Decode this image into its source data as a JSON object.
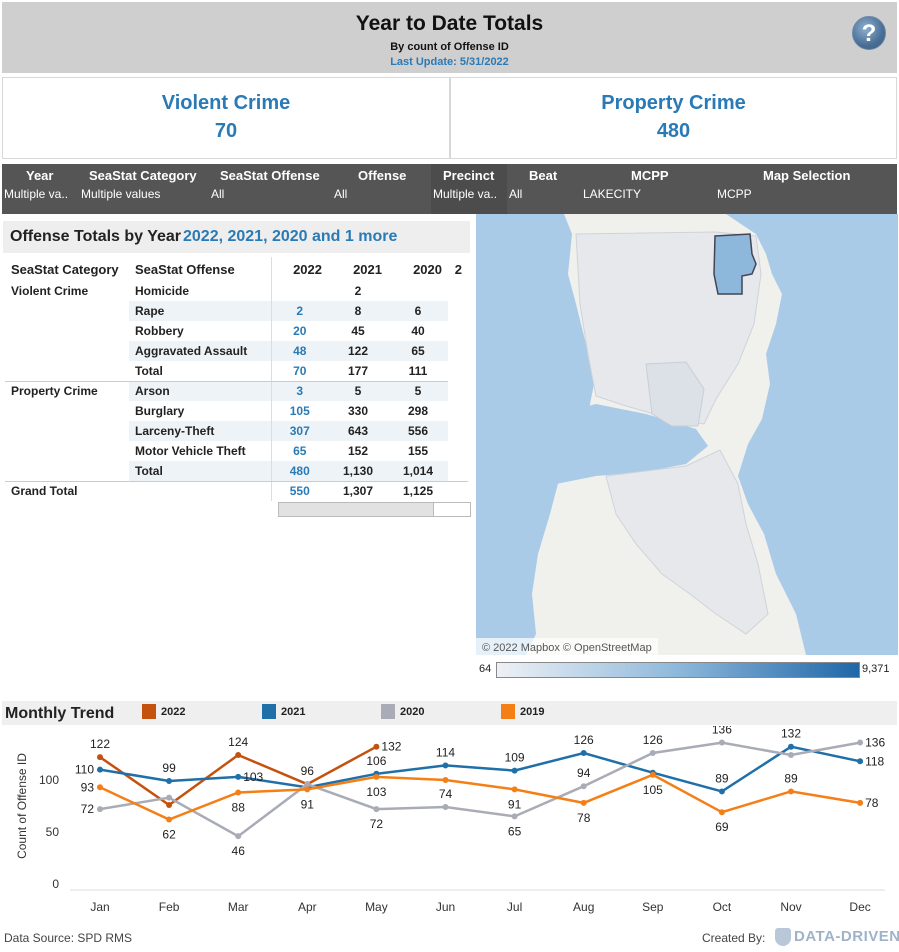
{
  "header": {
    "title": "Year to Date Totals",
    "subtitle": "By count of Offense ID",
    "last_update": "Last Update: 5/31/2022",
    "help_icon": "help-icon"
  },
  "kpis": {
    "violent": {
      "label": "Violent Crime",
      "value": "70"
    },
    "property": {
      "label": "Property Crime",
      "value": "480"
    }
  },
  "filters": [
    {
      "label": "Year",
      "value": "Multiple va.."
    },
    {
      "label": "SeaStat Category",
      "value": "Multiple values"
    },
    {
      "label": "SeaStat Offense",
      "value": "All"
    },
    {
      "label": "Offense",
      "value": "All"
    },
    {
      "label": "Precinct",
      "value": "Multiple va.."
    },
    {
      "label": "Beat",
      "value": "All"
    },
    {
      "label": "MCPP",
      "value": "LAKECITY"
    },
    {
      "label": "Map Selection",
      "value": "MCPP"
    }
  ],
  "offense_table": {
    "title": "Offense Totals by Year",
    "title_years": "2022, 2021, 2020 and 1 more",
    "col_headers": [
      "SeaStat Category",
      "SeaStat Offense",
      "2022",
      "2021",
      "2020",
      "2"
    ],
    "rows": [
      [
        "Violent Crime",
        "Homicide",
        "",
        "2",
        ""
      ],
      [
        "",
        "Rape",
        "2",
        "8",
        "6"
      ],
      [
        "",
        "Robbery",
        "20",
        "45",
        "40"
      ],
      [
        "",
        "Aggravated Assault",
        "48",
        "122",
        "65"
      ],
      [
        "",
        "Total",
        "70",
        "177",
        "111"
      ],
      [
        "Property Crime",
        "Arson",
        "3",
        "5",
        "5"
      ],
      [
        "",
        "Burglary",
        "105",
        "330",
        "298"
      ],
      [
        "",
        "Larceny-Theft",
        "307",
        "643",
        "556"
      ],
      [
        "",
        "Motor Vehicle Theft",
        "65",
        "152",
        "155"
      ],
      [
        "",
        "Total",
        "480",
        "1,130",
        "1,014"
      ],
      [
        "Grand Total",
        "",
        "550",
        "1,307",
        "1,125"
      ]
    ]
  },
  "map": {
    "attribution": "© 2022 Mapbox © OpenStreetMap",
    "legend_min": "64",
    "legend_max": "9,371",
    "water_color": "#a9cbe8",
    "selected_color": "#8db8db"
  },
  "monthly": {
    "title": "Monthly Trend",
    "legend": [
      {
        "name": "2022",
        "color": "#c4520e"
      },
      {
        "name": "2021",
        "color": "#1f6fa9"
      },
      {
        "name": "2020",
        "color": "#a9acb6"
      },
      {
        "name": "2019",
        "color": "#f57f17"
      }
    ]
  },
  "chart_data": {
    "type": "line",
    "ylabel": "Count of Offense ID",
    "ylim": [
      0,
      150
    ],
    "yticks": [
      "0",
      "50",
      "100"
    ],
    "categories": [
      "Jan",
      "Feb",
      "Mar",
      "Apr",
      "May",
      "Jun",
      "Jul",
      "Aug",
      "Sep",
      "Oct",
      "Nov",
      "Dec"
    ],
    "series": [
      {
        "name": "2022",
        "color": "#c4520e",
        "values": [
          122,
          76,
          124,
          96,
          132,
          null,
          null,
          null,
          null,
          null,
          null,
          null
        ]
      },
      {
        "name": "2021",
        "color": "#1f6fa9",
        "values": [
          110,
          99,
          103,
          93,
          106,
          114,
          109,
          126,
          107,
          89,
          132,
          118
        ]
      },
      {
        "name": "2020",
        "color": "#a9acb6",
        "values": [
          72,
          83,
          46,
          96,
          72,
          74,
          65,
          94,
          126,
          136,
          124,
          136
        ]
      },
      {
        "name": "2019",
        "color": "#f57f17",
        "values": [
          93,
          62,
          88,
          91,
          103,
          100,
          91,
          78,
          105,
          69,
          89,
          78
        ]
      }
    ],
    "data_labels": [
      {
        "series": "2022",
        "i": 0,
        "text": "122",
        "pos": "above"
      },
      {
        "series": "2022",
        "i": 2,
        "text": "124",
        "pos": "above"
      },
      {
        "series": "2022",
        "i": 4,
        "text": "132",
        "pos": "right"
      },
      {
        "series": "2021",
        "i": 0,
        "text": "110",
        "pos": "left"
      },
      {
        "series": "2021",
        "i": 1,
        "text": "99",
        "pos": "above"
      },
      {
        "series": "2021",
        "i": 2,
        "text": "103",
        "pos": "right"
      },
      {
        "series": "2021",
        "i": 4,
        "text": "106",
        "pos": "above"
      },
      {
        "series": "2021",
        "i": 5,
        "text": "114",
        "pos": "above"
      },
      {
        "series": "2021",
        "i": 6,
        "text": "109",
        "pos": "above"
      },
      {
        "series": "2021",
        "i": 7,
        "text": "126",
        "pos": "above"
      },
      {
        "series": "2021",
        "i": 9,
        "text": "89",
        "pos": "above"
      },
      {
        "series": "2021",
        "i": 10,
        "text": "132",
        "pos": "above"
      },
      {
        "series": "2021",
        "i": 11,
        "text": "118",
        "pos": "right"
      },
      {
        "series": "2020",
        "i": 0,
        "text": "72",
        "pos": "left"
      },
      {
        "series": "2020",
        "i": 2,
        "text": "46",
        "pos": "below"
      },
      {
        "series": "2020",
        "i": 3,
        "text": "96",
        "pos": "above"
      },
      {
        "series": "2020",
        "i": 4,
        "text": "72",
        "pos": "below"
      },
      {
        "series": "2020",
        "i": 5,
        "text": "74",
        "pos": "above"
      },
      {
        "series": "2020",
        "i": 6,
        "text": "65",
        "pos": "below"
      },
      {
        "series": "2020",
        "i": 7,
        "text": "94",
        "pos": "above"
      },
      {
        "series": "2020",
        "i": 8,
        "text": "126",
        "pos": "above"
      },
      {
        "series": "2020",
        "i": 9,
        "text": "136",
        "pos": "above"
      },
      {
        "series": "2020",
        "i": 11,
        "text": "136",
        "pos": "right"
      },
      {
        "series": "2019",
        "i": 0,
        "text": "93",
        "pos": "left"
      },
      {
        "series": "2019",
        "i": 1,
        "text": "62",
        "pos": "below"
      },
      {
        "series": "2019",
        "i": 2,
        "text": "88",
        "pos": "below"
      },
      {
        "series": "2019",
        "i": 3,
        "text": "91",
        "pos": "below"
      },
      {
        "series": "2019",
        "i": 4,
        "text": "103",
        "pos": "below"
      },
      {
        "series": "2019",
        "i": 6,
        "text": "91",
        "pos": "below"
      },
      {
        "series": "2019",
        "i": 7,
        "text": "78",
        "pos": "below"
      },
      {
        "series": "2019",
        "i": 8,
        "text": "105",
        "pos": "below"
      },
      {
        "series": "2019",
        "i": 9,
        "text": "69",
        "pos": "below"
      },
      {
        "series": "2019",
        "i": 10,
        "text": "89",
        "pos": "above"
      },
      {
        "series": "2019",
        "i": 11,
        "text": "78",
        "pos": "right"
      }
    ]
  },
  "footer": {
    "source": "Data Source: SPD RMS",
    "created_by": "Created By:",
    "brand": "DATA-DRIVEN"
  }
}
